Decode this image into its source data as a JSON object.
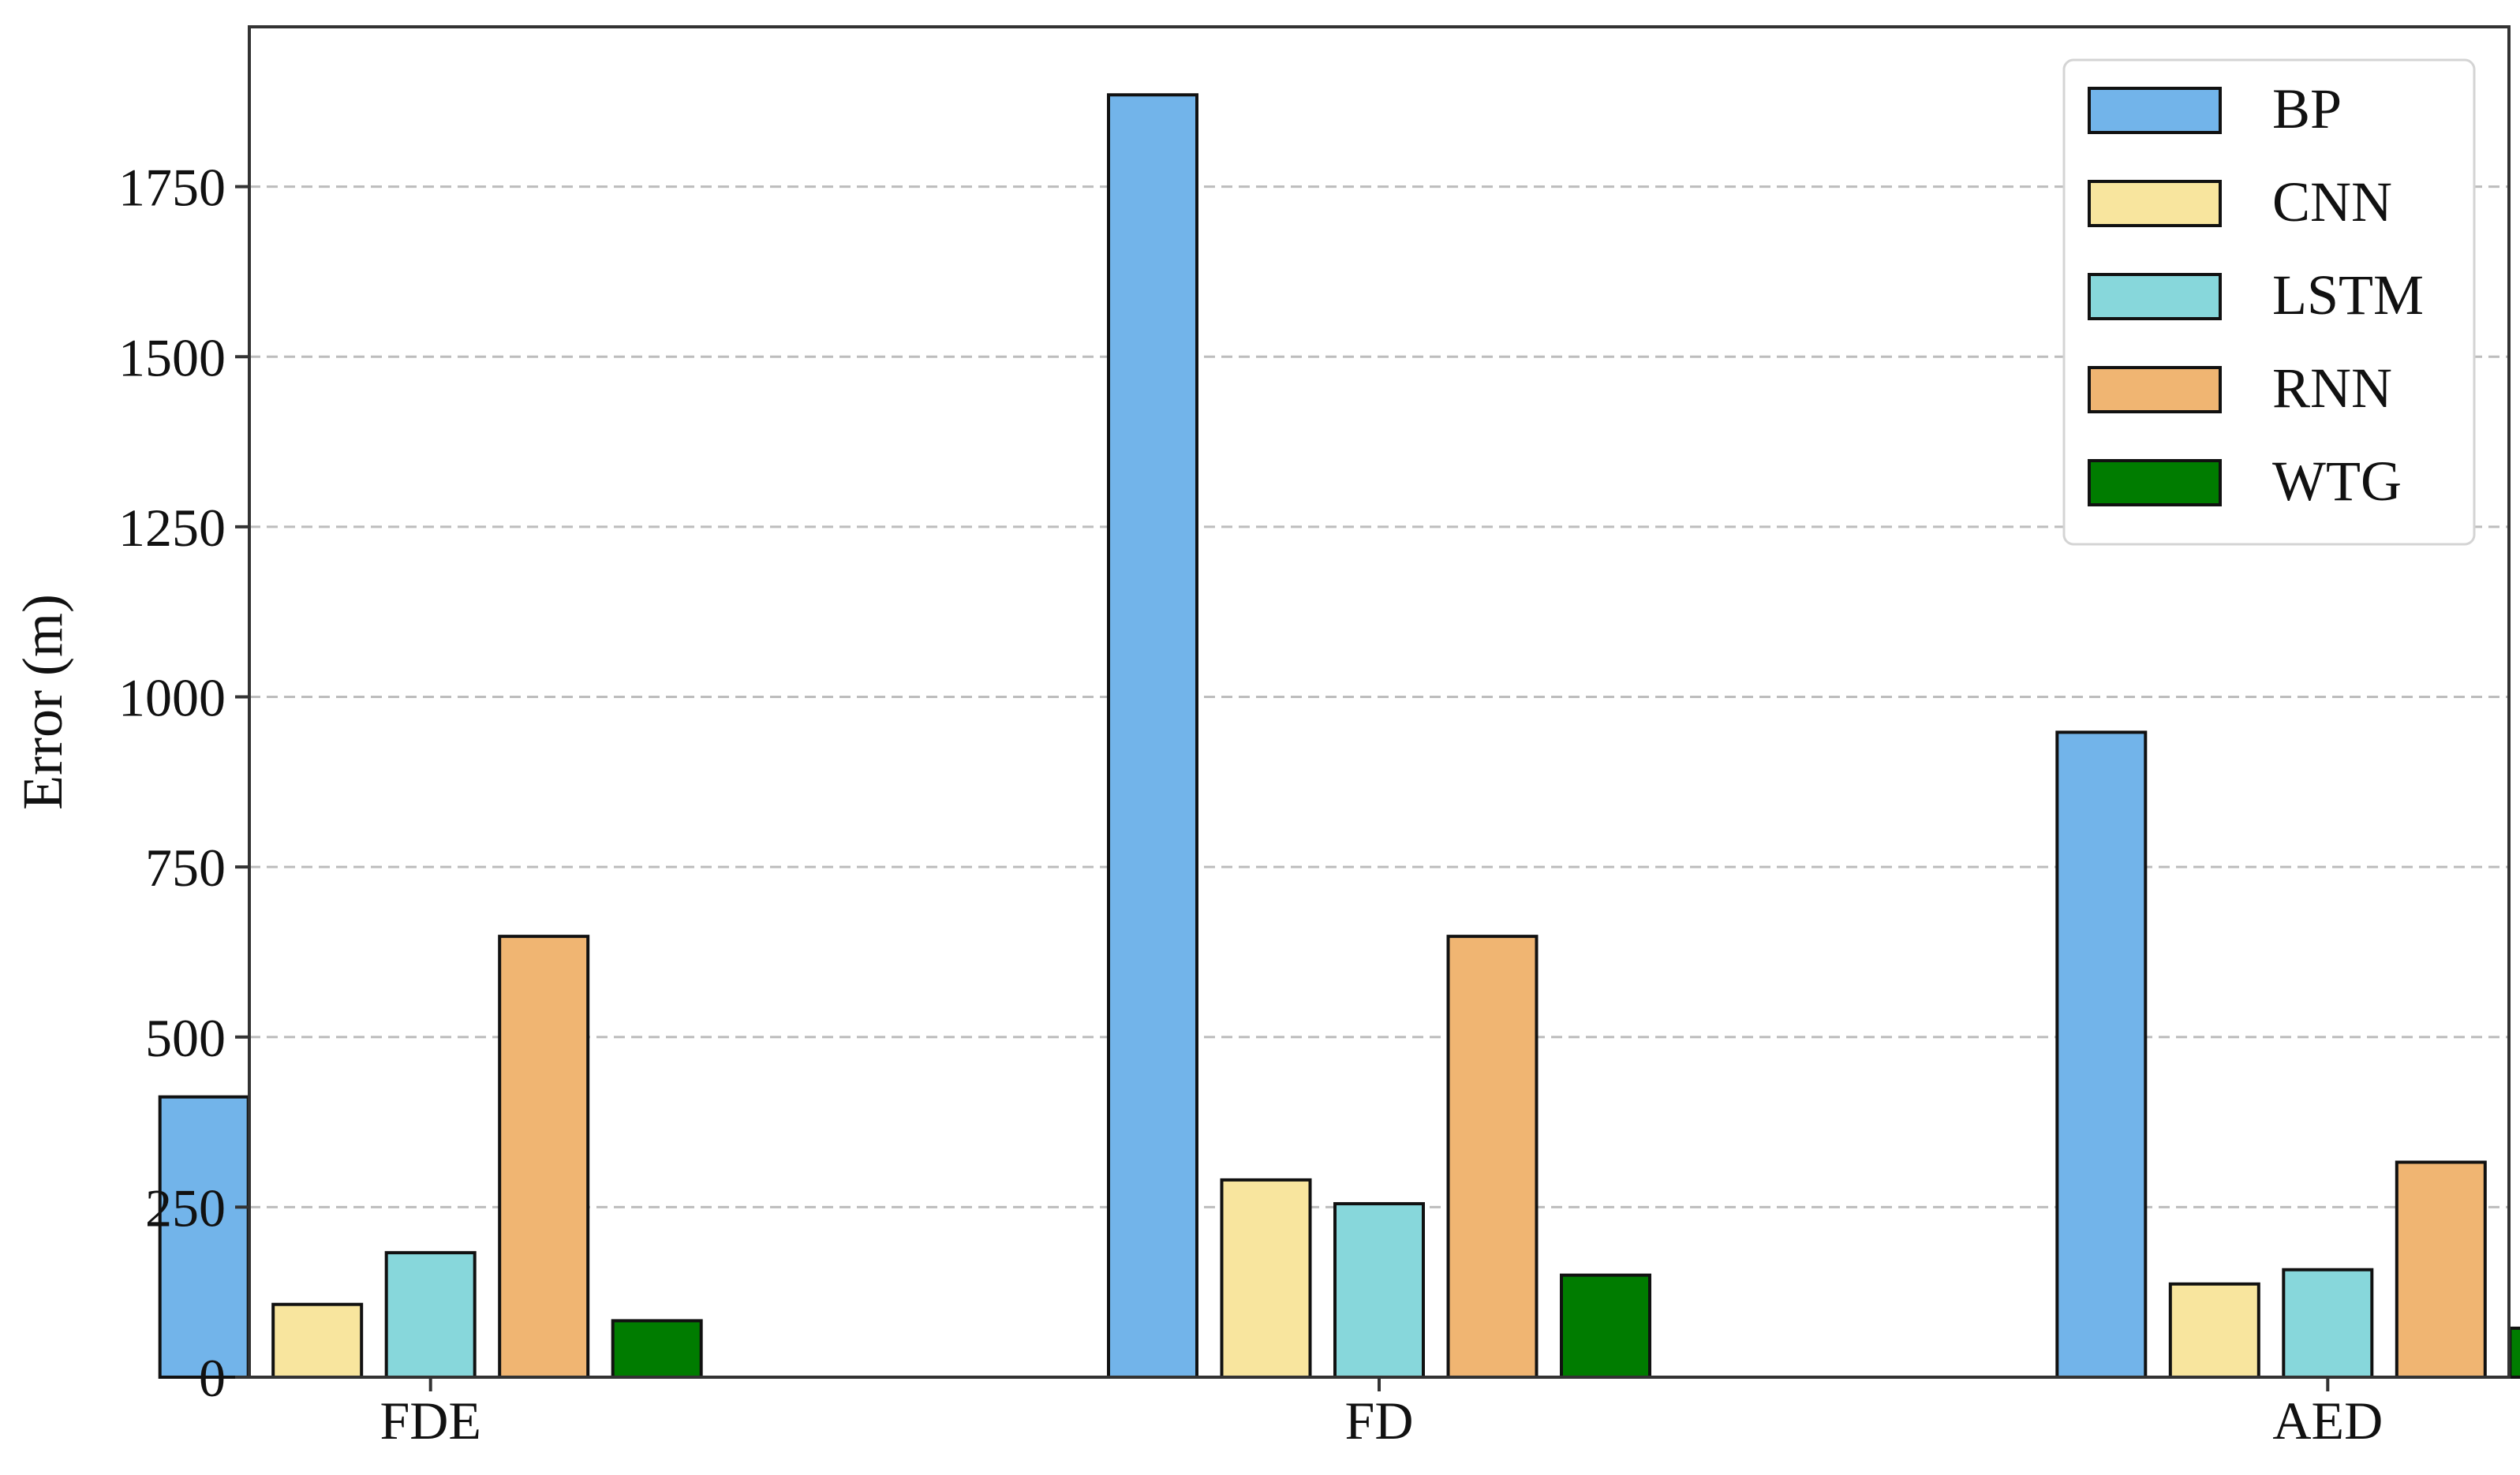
{
  "chart_data": {
    "type": "bar",
    "categories": [
      "FDE",
      "FD",
      "AED"
    ],
    "series": [
      {
        "name": "BP",
        "color": "#72B4EA",
        "values": [
          412,
          1885,
          948
        ]
      },
      {
        "name": "CNN",
        "color": "#F8E59E",
        "values": [
          107,
          290,
          137
        ]
      },
      {
        "name": "LSTM",
        "color": "#87D7DB",
        "values": [
          183,
          255,
          158
        ]
      },
      {
        "name": "RNN",
        "color": "#F0B572",
        "values": [
          648,
          648,
          316
        ]
      },
      {
        "name": "WTG",
        "color": "#007C00",
        "values": [
          83,
          150,
          72
        ]
      }
    ],
    "ylabel": "Error (m)",
    "xlabel": "",
    "ylim": [
      0,
      1985
    ],
    "yticks": [
      0,
      250,
      500,
      750,
      1000,
      1250,
      1500,
      1750
    ],
    "grid": "horizontal-dashed",
    "legend_position": "top-right"
  }
}
